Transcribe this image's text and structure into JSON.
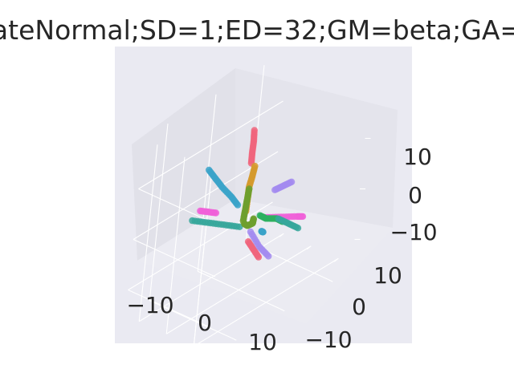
{
  "chart_data": {
    "type": "scatter",
    "projection": "3d",
    "title": "ateNormal;SD=1;ED=32;GM=beta;GA=",
    "xlabel": "",
    "ylabel": "",
    "zlabel": "",
    "x_ticks": [
      "−10",
      "0",
      "10"
    ],
    "y_ticks": [
      "−10",
      "0",
      "10"
    ],
    "z_ticks": [
      "−10",
      "0",
      "10"
    ],
    "xlim": [
      -15,
      15
    ],
    "ylim": [
      -15,
      15
    ],
    "zlim": [
      -15,
      20
    ],
    "grid": true,
    "legend": "none",
    "series": [
      {
        "color": "#f0657c",
        "points": [
          [
            0.5,
            0.5,
            17
          ],
          [
            1.0,
            0.7,
            15
          ],
          [
            1.2,
            0.9,
            13
          ],
          [
            1.4,
            1.0,
            11
          ]
        ]
      },
      {
        "color": "#d59a2d",
        "points": [
          [
            1.5,
            0.2,
            10
          ],
          [
            1.4,
            0.5,
            8
          ],
          [
            1.0,
            0.7,
            6
          ],
          [
            0.8,
            0.6,
            4
          ],
          [
            0.5,
            0.5,
            1
          ]
        ]
      },
      {
        "color": "#a38bf0",
        "points": [
          [
            13,
            -1,
            9
          ],
          [
            11,
            -0.5,
            8
          ],
          [
            9,
            0,
            7
          ]
        ]
      },
      {
        "color": "#f062d8",
        "points": [
          [
            5,
            -1,
            0
          ],
          [
            9,
            -2,
            0.5
          ],
          [
            13,
            -3,
            1
          ],
          [
            15,
            -3,
            1.5
          ]
        ]
      },
      {
        "color": "#f062d8",
        "points": [
          [
            -6,
            3,
            0.5
          ],
          [
            -8,
            3.5,
            0.5
          ],
          [
            -10,
            4,
            0.5
          ]
        ]
      },
      {
        "color": "#3ba3c9",
        "points": [
          [
            -10,
            3,
            8
          ],
          [
            -9,
            2,
            6
          ],
          [
            -8,
            1,
            4
          ],
          [
            -6,
            0,
            2
          ],
          [
            -5,
            -1,
            0
          ]
        ]
      },
      {
        "color": "#36a79b",
        "points": [
          [
            -14,
            3,
            -3
          ],
          [
            -10,
            2,
            -3
          ],
          [
            -6,
            1,
            -3
          ],
          [
            -2,
            0,
            -3
          ]
        ]
      },
      {
        "color": "#6f9f2e",
        "points": [
          [
            0,
            0,
            5
          ],
          [
            0,
            0.2,
            3
          ],
          [
            0,
            0.4,
            1
          ],
          [
            0,
            0.6,
            -1
          ]
        ]
      },
      {
        "color": "#6f9f2e",
        "points": [
          [
            -10,
            -8,
            -8
          ],
          [
            -7,
            -6,
            -7
          ],
          [
            -4,
            -3,
            -5
          ],
          [
            -2,
            -1,
            -3
          ]
        ]
      },
      {
        "color": "#2db05f",
        "points": [
          [
            -3,
            -10,
            -8
          ],
          [
            -2,
            -8,
            -6
          ],
          [
            -1,
            -5,
            -4
          ],
          [
            0,
            -3,
            -2
          ]
        ]
      },
      {
        "color": "#f0657c",
        "points": [
          [
            0,
            -1,
            -6
          ],
          [
            0.5,
            -2,
            -8
          ],
          [
            1,
            -3,
            -10
          ]
        ]
      },
      {
        "color": "#a38bf0",
        "points": [
          [
            2,
            0,
            -3
          ],
          [
            4,
            -1,
            -6
          ],
          [
            6,
            -2,
            -8
          ]
        ]
      },
      {
        "color": "#36a79b",
        "points": [
          [
            5,
            -4,
            -2
          ],
          [
            7,
            -5,
            -3
          ],
          [
            9,
            -6,
            -4
          ]
        ]
      },
      {
        "color": "#3ba3c9",
        "points": [
          [
            6,
            0,
            -2
          ],
          [
            8,
            1,
            -1
          ],
          [
            9,
            2,
            0
          ]
        ]
      }
    ]
  }
}
